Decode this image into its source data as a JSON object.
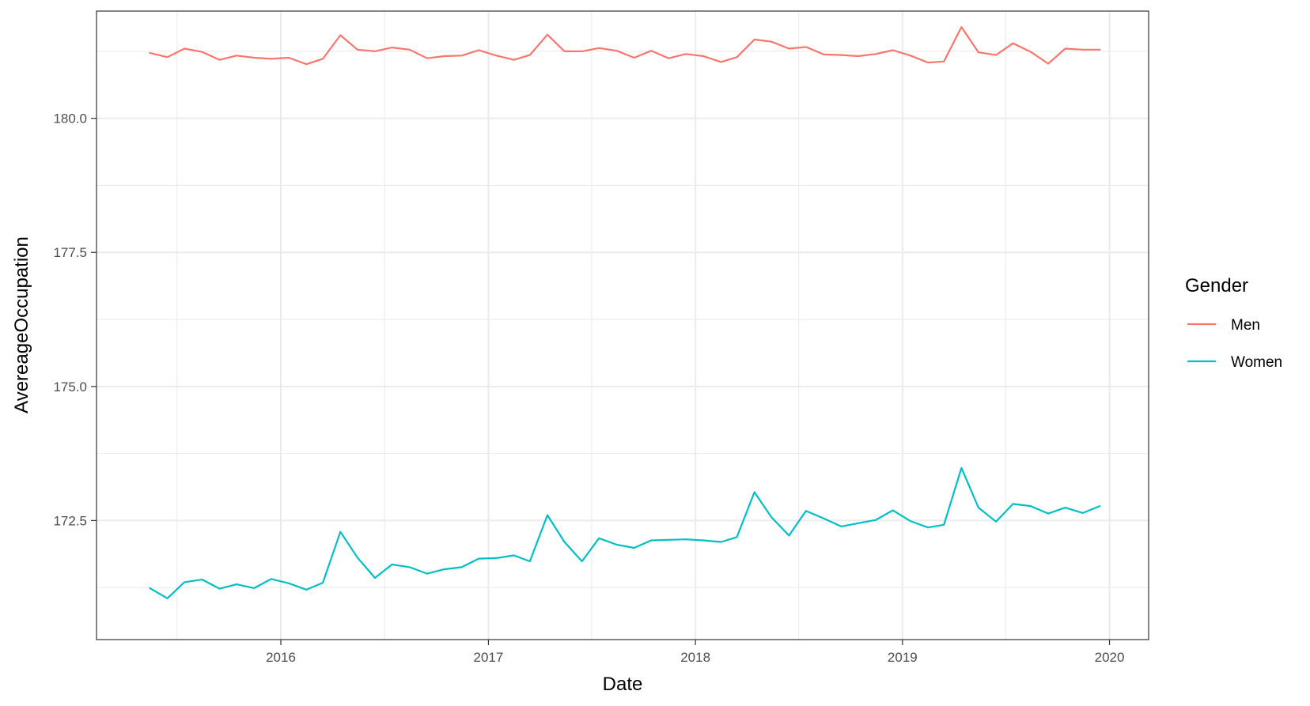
{
  "chart_data": {
    "type": "line",
    "xlabel": "Date",
    "ylabel": "AvereageOccupation",
    "x_ticks": [
      "2016",
      "2017",
      "2018",
      "2019",
      "2020"
    ],
    "y_ticks": [
      "172.5",
      "175.0",
      "177.5",
      "180.0"
    ],
    "ylim": [
      170.28,
      182.0
    ],
    "xlim": [
      "2015-02-10",
      "2020-03-10"
    ],
    "grid": true,
    "legend": {
      "title": "Gender",
      "position": "right"
    },
    "x": [
      "2015-05",
      "2015-06",
      "2015-07",
      "2015-08",
      "2015-09",
      "2015-10",
      "2015-11",
      "2015-12",
      "2016-01",
      "2016-02",
      "2016-03",
      "2016-04",
      "2016-05",
      "2016-06",
      "2016-07",
      "2016-08",
      "2016-09",
      "2016-10",
      "2016-11",
      "2016-12",
      "2017-01",
      "2017-02",
      "2017-03",
      "2017-04",
      "2017-05",
      "2017-06",
      "2017-07",
      "2017-08",
      "2017-09",
      "2017-10",
      "2017-11",
      "2017-12",
      "2018-01",
      "2018-02",
      "2018-03",
      "2018-04",
      "2018-05",
      "2018-06",
      "2018-07",
      "2018-08",
      "2018-09",
      "2018-10",
      "2018-11",
      "2018-12",
      "2019-01",
      "2019-02",
      "2019-03",
      "2019-04",
      "2019-05",
      "2019-06",
      "2019-07",
      "2019-08",
      "2019-09",
      "2019-10",
      "2019-11",
      "2019-12"
    ],
    "series": [
      {
        "name": "Men",
        "color": "#F8766D",
        "values": [
          181.22,
          181.14,
          181.3,
          181.24,
          181.09,
          181.17,
          181.13,
          181.11,
          181.13,
          181.01,
          181.11,
          181.55,
          181.28,
          181.25,
          181.32,
          181.28,
          181.12,
          181.16,
          181.17,
          181.27,
          181.17,
          181.09,
          181.18,
          181.56,
          181.25,
          181.25,
          181.31,
          181.26,
          181.13,
          181.26,
          181.12,
          181.2,
          181.16,
          181.05,
          181.14,
          181.47,
          181.43,
          181.3,
          181.33,
          181.19,
          181.18,
          181.16,
          181.2,
          181.27,
          181.17,
          181.04,
          181.06,
          181.7,
          181.23,
          181.18,
          181.4,
          181.24,
          181.02,
          181.3,
          181.28,
          181.28
        ]
      },
      {
        "name": "Women",
        "color": "#00BFC4",
        "values": [
          171.24,
          171.05,
          171.35,
          171.4,
          171.23,
          171.31,
          171.24,
          171.41,
          171.33,
          171.21,
          171.34,
          172.29,
          171.81,
          171.43,
          171.68,
          171.63,
          171.51,
          171.59,
          171.63,
          171.79,
          171.8,
          171.85,
          171.74,
          172.6,
          172.1,
          171.74,
          172.17,
          172.05,
          171.99,
          172.13,
          172.14,
          172.15,
          172.13,
          172.1,
          172.19,
          173.03,
          172.56,
          172.22,
          172.68,
          172.54,
          172.39,
          172.45,
          172.51,
          172.69,
          172.49,
          172.37,
          172.42,
          173.48,
          172.74,
          172.48,
          172.81,
          172.77,
          172.63,
          172.74,
          172.64,
          172.77
        ]
      }
    ]
  }
}
